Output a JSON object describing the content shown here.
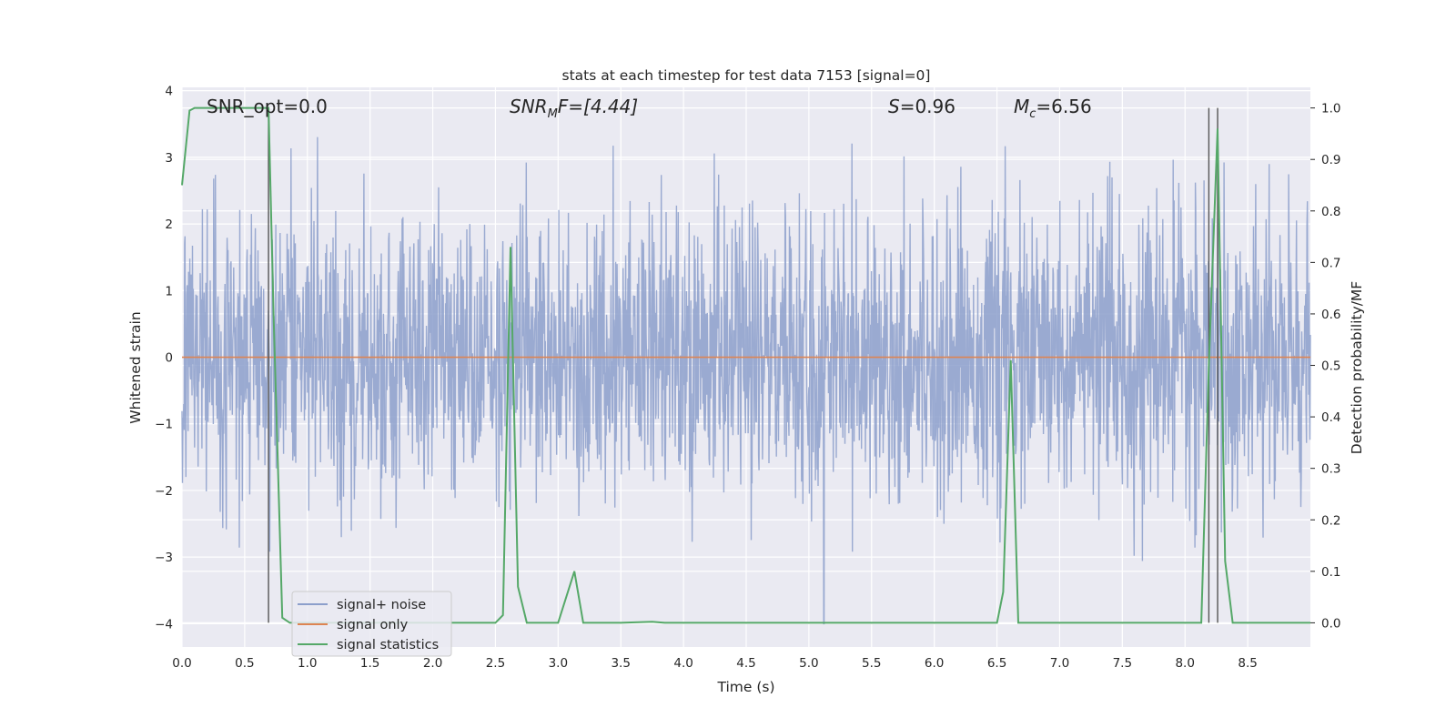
{
  "chart_data": {
    "type": "line",
    "title": "stats at each timestep for test data 7153 [signal=0]",
    "xlabel": "Time (s)",
    "ylabel": "Whitened strain",
    "ylabel_right": "Detection probability/MF",
    "xlim": [
      0.0,
      9.0
    ],
    "ylim": [
      -4.35,
      4.05
    ],
    "ylim_right": [
      -0.047,
      1.04
    ],
    "x_ticks": [
      "0.0",
      "0.5",
      "1.0",
      "1.5",
      "2.0",
      "2.5",
      "3.0",
      "3.5",
      "4.0",
      "4.5",
      "5.0",
      "5.5",
      "6.0",
      "6.5",
      "7.0",
      "7.5",
      "8.0",
      "8.5"
    ],
    "y_ticks": [
      "−4",
      "−3",
      "−2",
      "−1",
      "0",
      "1",
      "2",
      "3",
      "4"
    ],
    "y_ticks_right": [
      "0.0",
      "0.1",
      "0.2",
      "0.3",
      "0.4",
      "0.5",
      "0.6",
      "0.7",
      "0.8",
      "0.9",
      "1.0"
    ],
    "grid": true,
    "legend_position": "lower-left",
    "annotations": [
      {
        "text": "SNR_opt=0.0",
        "x": 0.19
      },
      {
        "text": "SNR_MF=[4.44]",
        "x": 2.6
      },
      {
        "text": "S=0.96",
        "x": 5.6
      },
      {
        "text": "M_c=6.56",
        "x": 6.6
      }
    ],
    "vlines": [
      0.69,
      8.19,
      8.26
    ],
    "series": [
      {
        "name": "signal+ noise",
        "color": "#8c9fcb",
        "description": "whitened noise, amplitude ±2.5 typical with peaks to about ±3.3, one spike to -4 near t=5.12",
        "envelope_max": 3.35,
        "envelope_min": -4.0
      },
      {
        "name": "signal only",
        "color": "#dd8452",
        "x": [
          0.0,
          9.0
        ],
        "y": [
          0.0,
          0.0
        ]
      },
      {
        "name": "signal statistics",
        "color": "#55a868",
        "axis": "right",
        "x": [
          0.0,
          0.06,
          0.1,
          0.2,
          0.3,
          0.4,
          0.5,
          0.6,
          0.66,
          0.69,
          0.73,
          0.8,
          0.86,
          1.0,
          2.5,
          2.56,
          2.62,
          2.68,
          2.75,
          3.0,
          3.13,
          3.2,
          3.5,
          3.75,
          3.85,
          6.5,
          6.55,
          6.61,
          6.67,
          6.75,
          8.13,
          8.19,
          8.26,
          8.32,
          8.38,
          9.0
        ],
        "y": [
          0.85,
          0.995,
          1.0,
          1.0,
          1.0,
          1.0,
          1.0,
          1.0,
          1.0,
          1.0,
          0.6,
          0.01,
          0.0,
          0.0,
          0.0,
          0.015,
          0.73,
          0.07,
          0.0,
          0.0,
          0.1,
          0.0,
          0.0,
          0.002,
          0.0,
          0.0,
          0.06,
          0.51,
          0.0,
          0.0,
          0.0,
          0.5,
          0.96,
          0.12,
          0.0,
          0.0
        ]
      }
    ]
  }
}
